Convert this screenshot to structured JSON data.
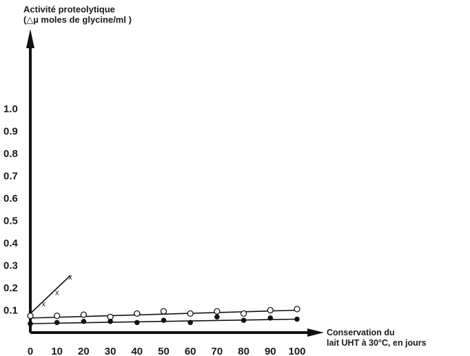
{
  "chart_data": {
    "type": "scatter",
    "ylabel": [
      "Activité proteolytique",
      "(△µ moles de glycine/ml )"
    ],
    "xlabel": [
      "Conservation du",
      "lait UHT à 30°C, en jours"
    ],
    "xlim": [
      0,
      100
    ],
    "ylim": [
      0,
      1.0
    ],
    "xticks": [
      0,
      10,
      20,
      30,
      40,
      50,
      60,
      70,
      80,
      90,
      100
    ],
    "xtick_labels": [
      "0",
      "10",
      "20",
      "30",
      "40",
      "50",
      "60",
      "70",
      "80",
      "90",
      "100"
    ],
    "yticks": [
      0.1,
      0.2,
      0.3,
      0.4,
      0.5,
      0.6,
      0.7,
      0.8,
      0.9,
      1.0
    ],
    "ytick_labels": [
      "0.1",
      "0.2",
      "0.3",
      "0.4",
      "0.5",
      "0.6",
      "0.7",
      "0.8",
      "0.9",
      "1.0"
    ],
    "grid": false,
    "series": [
      {
        "marker": "x",
        "x": [
          0,
          5,
          10,
          15
        ],
        "y": [
          0.09,
          0.13,
          0.18,
          0.25
        ],
        "trend": {
          "x": [
            0,
            15
          ],
          "y": [
            0.085,
            0.255
          ]
        }
      },
      {
        "marker": "open-circle",
        "x": [
          0,
          10,
          20,
          30,
          40,
          50,
          60,
          70,
          80,
          90,
          100
        ],
        "y": [
          0.075,
          0.075,
          0.08,
          0.07,
          0.085,
          0.095,
          0.085,
          0.095,
          0.085,
          0.1,
          0.105
        ],
        "trend": {
          "x": [
            0,
            100
          ],
          "y": [
            0.065,
            0.1
          ]
        }
      },
      {
        "marker": "filled-circle",
        "x": [
          0,
          10,
          20,
          30,
          40,
          50,
          60,
          70,
          80,
          90,
          100
        ],
        "y": [
          0.04,
          0.045,
          0.05,
          0.05,
          0.045,
          0.055,
          0.045,
          0.07,
          0.055,
          0.065,
          0.06
        ],
        "trend": {
          "x": [
            0,
            100
          ],
          "y": [
            0.04,
            0.06
          ]
        }
      }
    ]
  }
}
